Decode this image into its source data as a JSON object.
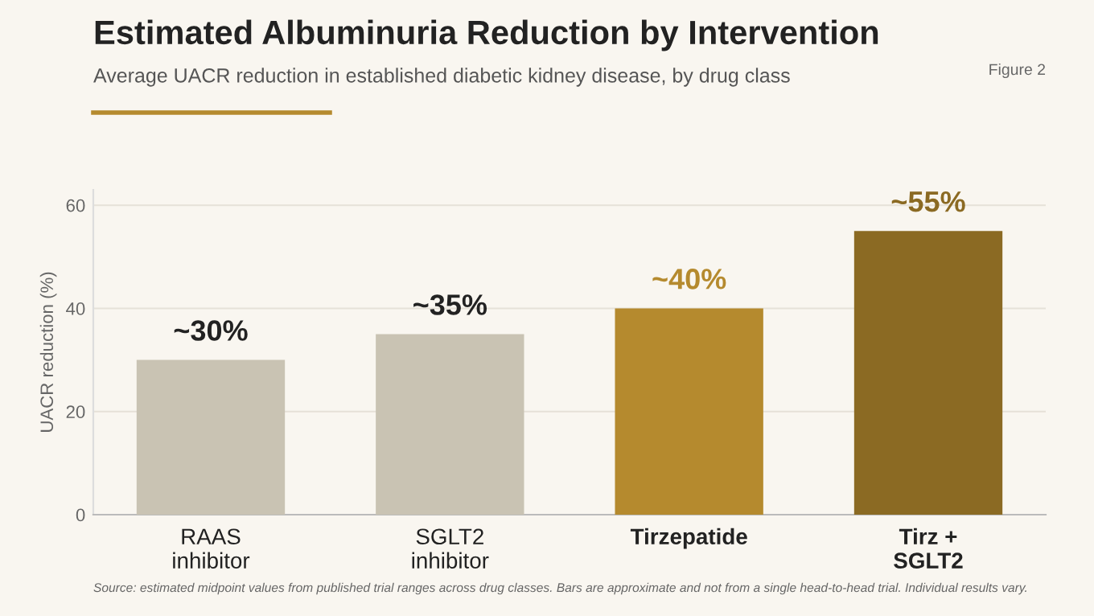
{
  "chart_data": {
    "type": "bar",
    "title": "Estimated Albuminuria Reduction by Intervention",
    "subtitle": "Average UACR reduction in established diabetic kidney disease, by drug class",
    "ylabel": "UACR reduction (%)",
    "categories": [
      "RAAS\ninhibitor",
      "SGLT2\ninhibitor",
      "Tirzepatide",
      "Tirz +\nSGLT2"
    ],
    "values": [
      30,
      35,
      40,
      55
    ],
    "colors": [
      "#c9c3b3",
      "#c9c3b3",
      "#b58a2e",
      "#8b6a23"
    ],
    "value_labels": [
      "~30%",
      "~35%",
      "~40%",
      "~55%"
    ],
    "ylim": [
      0,
      63
    ],
    "yticks": [
      0,
      20,
      40,
      60
    ],
    "grid": "y",
    "annotations": [
      "Figure 2",
      "Source: estimated midpoint values from published trial ranges across drug classes. Bars are approximate and not from a single head-to-head trial. Individual results vary."
    ]
  }
}
